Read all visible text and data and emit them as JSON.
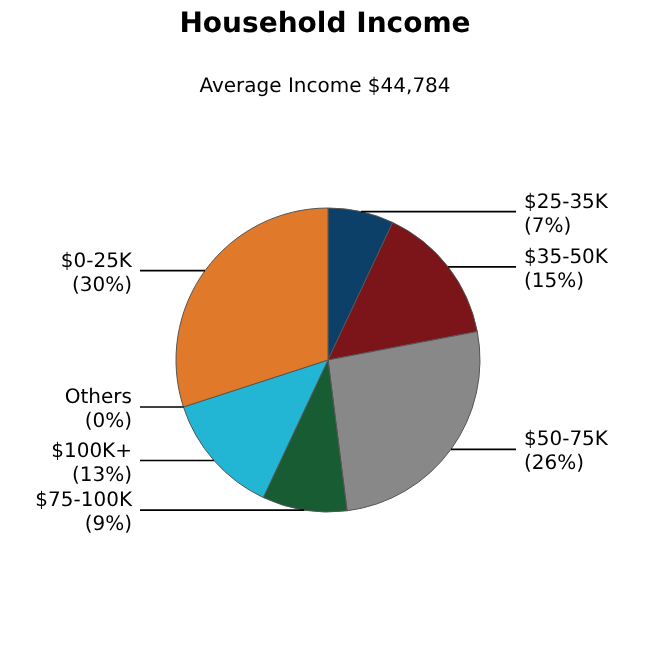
{
  "chart_data": {
    "type": "pie",
    "title": "Household Income",
    "subtitle": "Average Income  $44,784",
    "categories": [
      "$25-35K",
      "$35-50K",
      "$50-75K",
      "$75-100K",
      "$100K+",
      "Others",
      "$0-25K"
    ],
    "values": [
      7,
      15,
      26,
      9,
      13,
      0,
      30
    ],
    "value_labels": [
      "(7%)",
      "(15%)",
      "(26%)",
      "(9%)",
      "(13%)",
      "(0%)",
      "(30%)"
    ],
    "colors": [
      "#0d4068",
      "#7c1519",
      "#888888",
      "#175c33",
      "#22b6d4",
      null,
      "#e07a2a"
    ]
  }
}
